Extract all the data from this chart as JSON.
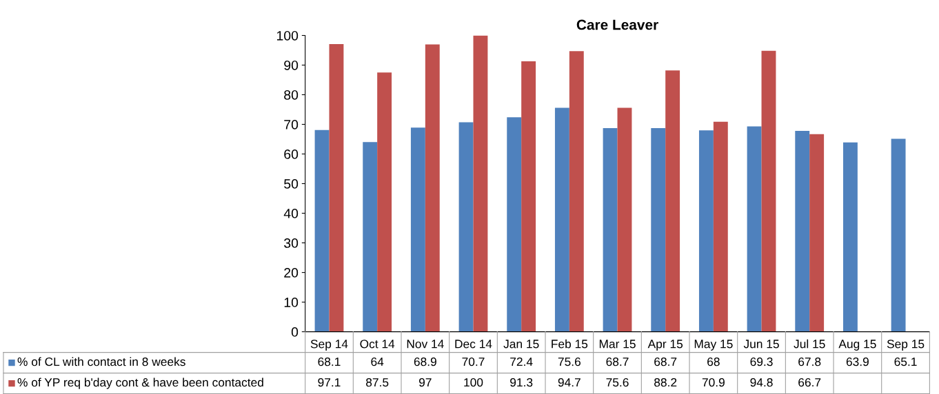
{
  "chart_data": {
    "type": "bar",
    "title": "Care Leaver",
    "categories": [
      "Sep 14",
      "Oct 14",
      "Nov 14",
      "Dec 14",
      "Jan 15",
      "Feb 15",
      "Mar 15",
      "Apr 15",
      "May 15",
      "Jun 15",
      "Jul 15",
      "Aug 15",
      "Sep 15"
    ],
    "series": [
      {
        "name": "% of CL with contact in 8 weeks",
        "color": "#4f81bd",
        "values": [
          68.1,
          64,
          68.9,
          70.7,
          72.4,
          75.6,
          68.7,
          68.7,
          68,
          69.3,
          67.8,
          63.9,
          65.1
        ]
      },
      {
        "name": "% of YP req b'day cont & have been contacted",
        "color": "#c0504d",
        "values": [
          97.1,
          87.5,
          97,
          100,
          91.3,
          94.7,
          75.6,
          88.2,
          70.9,
          94.8,
          66.7,
          null,
          null
        ]
      }
    ],
    "ylim": [
      0,
      100
    ],
    "yticks": [
      0,
      10,
      20,
      30,
      40,
      50,
      60,
      70,
      80,
      90,
      100
    ],
    "grid": false,
    "legend": "bottom",
    "data_labels": true
  }
}
